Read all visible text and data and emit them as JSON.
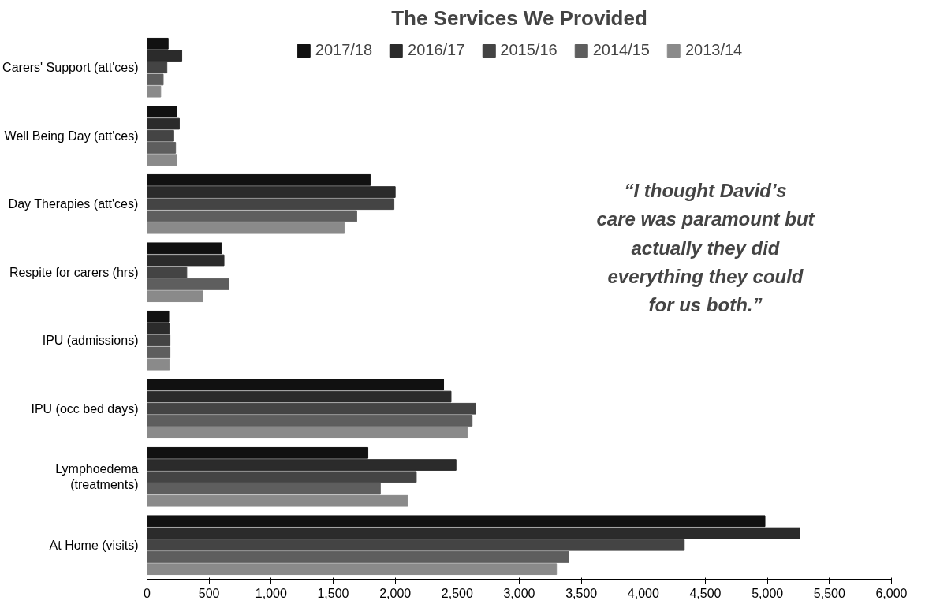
{
  "chart_data": {
    "type": "bar",
    "orientation": "horizontal",
    "title": "The Services We Provided",
    "categories": [
      "Carers' Support (att'ces)",
      "Well Being Day (att'ces)",
      "Day Therapies (att'ces)",
      "Respite for carers (hrs)",
      "IPU (admissions)",
      "IPU (occ bed days)",
      "Lymphoedema\n(treatments)",
      "At Home (visits)"
    ],
    "series": [
      {
        "name": "2017/18",
        "color": "#111111",
        "values": [
          170,
          240,
          1800,
          600,
          175,
          2390,
          1780,
          4980
        ]
      },
      {
        "name": "2016/17",
        "color": "#2b2b2b",
        "values": [
          280,
          260,
          2000,
          620,
          180,
          2450,
          2490,
          5260
        ]
      },
      {
        "name": "2015/16",
        "color": "#444444",
        "values": [
          160,
          215,
          1990,
          320,
          185,
          2650,
          2170,
          4330
        ]
      },
      {
        "name": "2014/15",
        "color": "#5e5e5e",
        "values": [
          130,
          230,
          1690,
          660,
          185,
          2620,
          1880,
          3400
        ]
      },
      {
        "name": "2013/14",
        "color": "#8a8a8a",
        "values": [
          110,
          240,
          1590,
          450,
          180,
          2580,
          2100,
          3300
        ]
      }
    ],
    "xlim": [
      0,
      6000
    ],
    "xticks": [
      0,
      {
        "value": 500,
        "label": "500"
      },
      {
        "value": 1000,
        "label": "1,000"
      },
      {
        "value": 1500,
        "label": "1,500"
      },
      {
        "value": 2000,
        "label": "2,000"
      },
      {
        "value": 2500,
        "label": "2,500"
      },
      {
        "value": 3000,
        "label": "3,000"
      },
      {
        "value": 3500,
        "label": "3,500"
      },
      {
        "value": 4000,
        "label": "4,000"
      },
      {
        "value": 4500,
        "label": "4,500"
      },
      {
        "value": 5000,
        "label": "5,000"
      },
      {
        "value": 5500,
        "label": "5,500"
      },
      {
        "value": 6000,
        "label": "6,000"
      }
    ],
    "legend": "top",
    "annotations": [
      "“I thought David’s care was paramount but actually they did everything they could for us both.”"
    ]
  }
}
